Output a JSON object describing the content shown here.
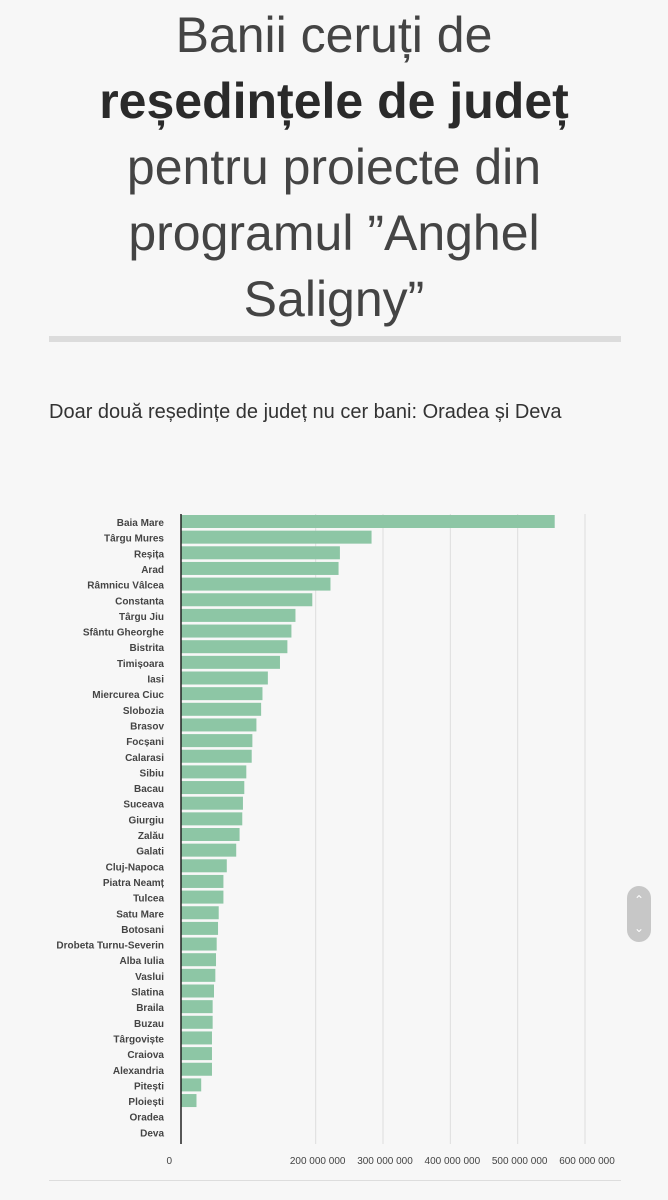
{
  "header": {
    "title_line1": "Banii ceruți de",
    "title_bold": "reședințele de județ",
    "title_line3": "pentru proiecte din",
    "title_line4": "programul ”Anghel",
    "title_line5": "Saligny”"
  },
  "chart_data": {
    "type": "bar",
    "orientation": "horizontal",
    "title": "Doar două reședințe de județ nu cer bani: Oradea și Deva",
    "xlabel": "",
    "ylabel": "",
    "xlim": [
      0,
      600000000
    ],
    "x_ticks": [
      0,
      200000000,
      300000000,
      400000000,
      500000000,
      600000000
    ],
    "x_tick_labels": [
      "0",
      "200 000 000",
      "300 000 000",
      "400 000 000",
      "500 000 000",
      "600 000 000"
    ],
    "grid": true,
    "categories": [
      "Baia Mare",
      "Târgu Mures",
      "Reșița",
      "Arad",
      "Râmnicu Vâlcea",
      "Constanta",
      "Târgu Jiu",
      "Sfântu Gheorghe",
      "Bistrita",
      "Timișoara",
      "Iasi",
      "Miercurea Ciuc",
      "Slobozia",
      "Brasov",
      "Focșani",
      "Calarasi",
      "Sibiu",
      "Bacau",
      "Suceava",
      "Giurgiu",
      "Zalău",
      "Galati",
      "Cluj-Napoca",
      "Piatra Neamț",
      "Tulcea",
      "Satu Mare",
      "Botosani",
      "Drobeta Turnu-Severin",
      "Alba Iulia",
      "Vaslui",
      "Slatina",
      "Braila",
      "Buzau",
      "Târgoviște",
      "Craiova",
      "Alexandria",
      "Pitești",
      "Ploiești",
      "Oradea",
      "Deva"
    ],
    "values": [
      555000000,
      283000000,
      236000000,
      234000000,
      222000000,
      195000000,
      170000000,
      164000000,
      158000000,
      147000000,
      129000000,
      121000000,
      119000000,
      112000000,
      106000000,
      105000000,
      97000000,
      94000000,
      92000000,
      91000000,
      87000000,
      82000000,
      68000000,
      63000000,
      63000000,
      56000000,
      55000000,
      53000000,
      52000000,
      51000000,
      49000000,
      47000000,
      47000000,
      46000000,
      46000000,
      46000000,
      30000000,
      23000000,
      0,
      0
    ],
    "colors": {
      "bar": "#8dc6a5"
    }
  }
}
